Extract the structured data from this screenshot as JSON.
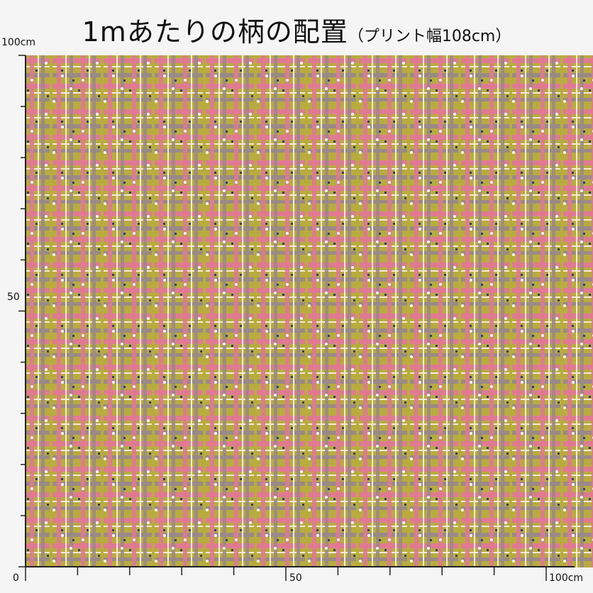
{
  "title": {
    "main": "1mあたりの柄の配置",
    "sub": "（プリント幅108cm）"
  },
  "ruler": {
    "left_top": "100cm",
    "left_mid": "50",
    "origin": "0",
    "bottom_mid": "50",
    "bottom_right": "100cm",
    "tick_count": 10
  },
  "fabric": {
    "pattern": "plaid-weave",
    "background": "#b8ac3e",
    "colors": {
      "pink": "#e07a92",
      "mauve": "#9a8a86",
      "olive": "#b8ac3e",
      "navy": "#2f3f6e",
      "cream": "#f2ead8",
      "white": "#ffffff"
    }
  }
}
